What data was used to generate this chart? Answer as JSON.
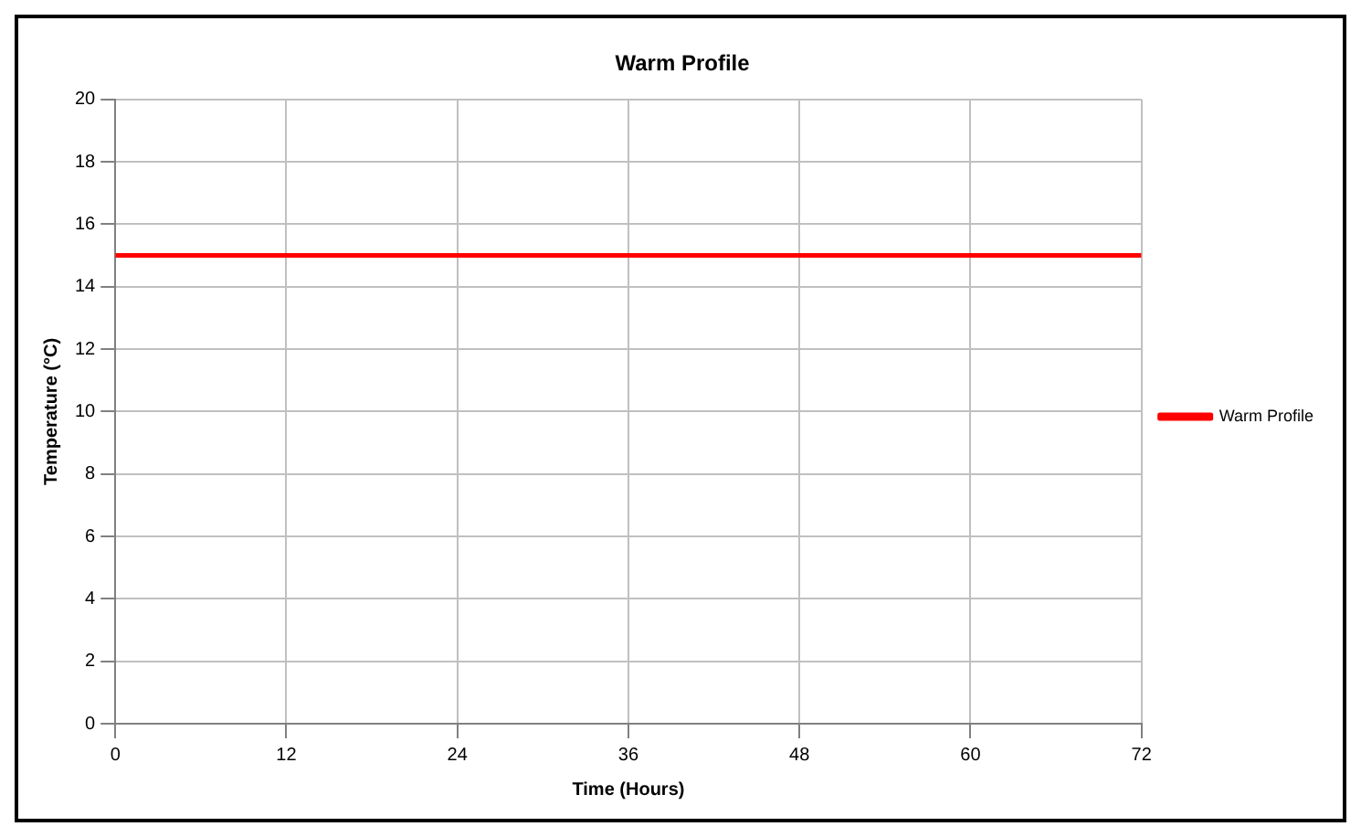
{
  "chart_data": {
    "type": "line",
    "title": "Warm Profile",
    "xlabel": "Time (Hours)",
    "ylabel": "Temperature (°C)",
    "x": [
      0,
      72
    ],
    "series": [
      {
        "name": "Warm Profile",
        "color": "#ff0000",
        "values": [
          15,
          15
        ]
      }
    ],
    "xlim": [
      0,
      72
    ],
    "xticks": [
      0,
      12,
      24,
      36,
      48,
      60,
      72
    ],
    "ylim": [
      0,
      20
    ],
    "yticks": [
      0,
      2,
      4,
      6,
      8,
      10,
      12,
      14,
      16,
      18,
      20
    ],
    "grid": true,
    "legend": "right",
    "marker": "none",
    "line_style": "solid"
  }
}
